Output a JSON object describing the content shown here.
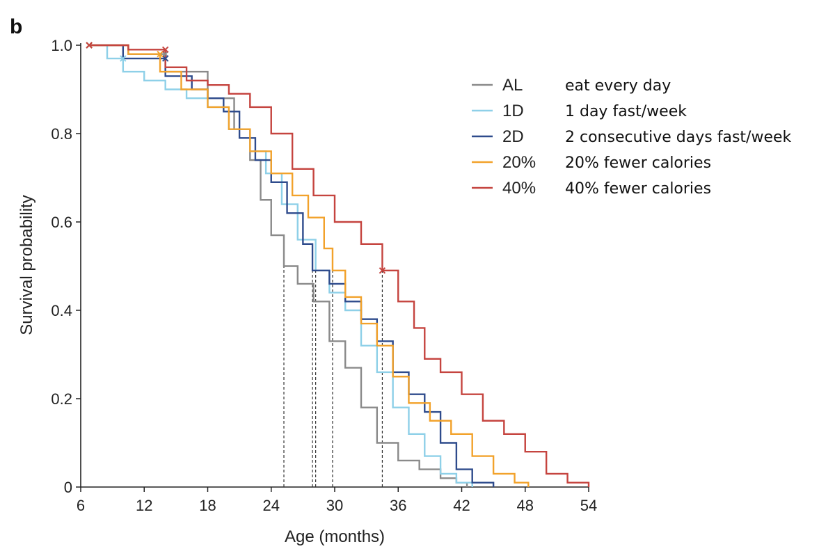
{
  "chart_data": {
    "type": "line",
    "panel_label": "b",
    "title": "",
    "xlabel": "Age (months)",
    "ylabel": "Survival probability",
    "xlim": [
      6,
      54
    ],
    "ylim": [
      0,
      1.0
    ],
    "xticks": [
      6,
      12,
      18,
      24,
      30,
      36,
      42,
      48,
      54
    ],
    "yticks": [
      0,
      0.2,
      0.4,
      0.6,
      0.8,
      1.0
    ],
    "ytick_labels": [
      "0",
      "0.2",
      "0.4",
      "0.6",
      "0.8",
      "1.0"
    ],
    "grid": false,
    "legend_position": "top-right",
    "series": [
      {
        "name": "AL",
        "description": "eat every day",
        "color": "#8a8a8a",
        "median": 25.2,
        "x": [
          6.8,
          10.5,
          14.0,
          18.0,
          20.5,
          22.0,
          23.0,
          24.0,
          25.2,
          26.5,
          28.0,
          29.5,
          31.0,
          32.5,
          34.0,
          36.0,
          38.0,
          40.0,
          41.5,
          42.5
        ],
        "y": [
          1.0,
          0.98,
          0.94,
          0.88,
          0.81,
          0.74,
          0.65,
          0.57,
          0.5,
          0.46,
          0.42,
          0.33,
          0.27,
          0.18,
          0.1,
          0.06,
          0.04,
          0.02,
          0.01,
          0.0
        ]
      },
      {
        "name": "1D",
        "description": "1 day fast/week",
        "color": "#8ed0e8",
        "median": 28.2,
        "x": [
          6.8,
          8.5,
          10.0,
          12.0,
          14.0,
          16.0,
          18.0,
          20.0,
          22.0,
          23.5,
          25.0,
          26.5,
          28.2,
          29.5,
          31.0,
          32.5,
          34.0,
          35.5,
          37.0,
          38.5,
          40.0,
          41.5,
          43.0
        ],
        "y": [
          1.0,
          0.97,
          0.94,
          0.92,
          0.9,
          0.88,
          0.86,
          0.81,
          0.76,
          0.71,
          0.64,
          0.56,
          0.49,
          0.44,
          0.4,
          0.32,
          0.26,
          0.18,
          0.12,
          0.07,
          0.03,
          0.01,
          0.0
        ]
      },
      {
        "name": "2D",
        "description": "2 consecutive days fast/week",
        "color": "#2e4b8c",
        "median": 27.9,
        "x": [
          6.8,
          10.0,
          14.0,
          16.5,
          18.0,
          19.5,
          21.0,
          22.5,
          24.0,
          25.5,
          27.0,
          27.9,
          29.5,
          31.0,
          32.5,
          34.0,
          35.5,
          37.0,
          38.5,
          40.0,
          41.5,
          43.0,
          45.0
        ],
        "y": [
          1.0,
          0.97,
          0.93,
          0.9,
          0.88,
          0.85,
          0.79,
          0.74,
          0.69,
          0.62,
          0.55,
          0.49,
          0.46,
          0.42,
          0.38,
          0.33,
          0.26,
          0.21,
          0.17,
          0.1,
          0.04,
          0.01,
          0.0
        ]
      },
      {
        "name": "20%",
        "description": "20% fewer calories",
        "color": "#f2a22b",
        "median": 29.8,
        "x": [
          6.8,
          10.5,
          13.5,
          15.5,
          18.0,
          20.0,
          22.0,
          24.0,
          26.0,
          27.5,
          29.0,
          29.8,
          31.0,
          32.5,
          34.0,
          35.5,
          37.0,
          39.0,
          41.0,
          43.0,
          45.0,
          47.0,
          48.3
        ],
        "y": [
          1.0,
          0.98,
          0.94,
          0.9,
          0.86,
          0.81,
          0.76,
          0.71,
          0.66,
          0.61,
          0.54,
          0.49,
          0.43,
          0.37,
          0.32,
          0.25,
          0.19,
          0.15,
          0.12,
          0.07,
          0.03,
          0.01,
          0.0
        ]
      },
      {
        "name": "40%",
        "description": "40% fewer calories",
        "color": "#c5443f",
        "median": 34.5,
        "x": [
          6.8,
          10.5,
          14.0,
          16.0,
          18.0,
          20.0,
          22.0,
          24.0,
          26.0,
          28.0,
          30.0,
          32.5,
          34.5,
          36.0,
          37.5,
          38.5,
          40.0,
          42.0,
          44.0,
          46.0,
          48.0,
          50.0,
          52.0,
          54.0
        ],
        "y": [
          1.0,
          0.99,
          0.95,
          0.92,
          0.91,
          0.89,
          0.86,
          0.8,
          0.72,
          0.66,
          0.6,
          0.55,
          0.49,
          0.42,
          0.36,
          0.29,
          0.26,
          0.21,
          0.15,
          0.12,
          0.08,
          0.03,
          0.01,
          0.0
        ]
      }
    ]
  }
}
